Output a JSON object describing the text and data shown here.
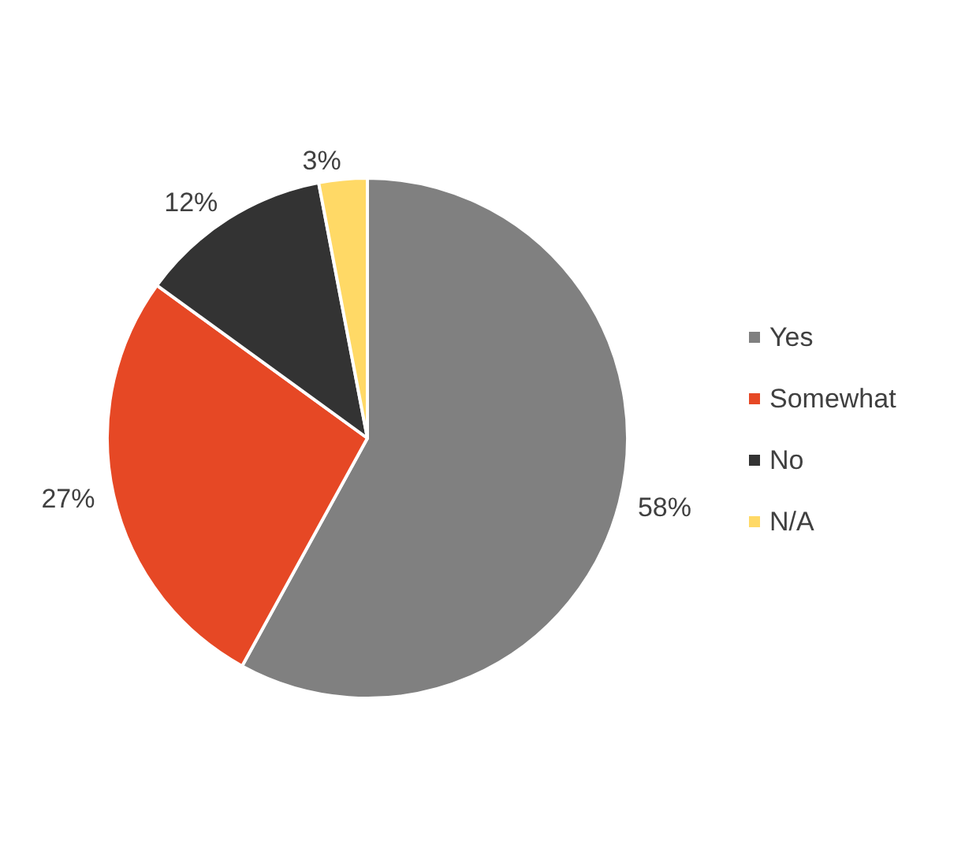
{
  "chart_data": {
    "type": "pie",
    "categories": [
      "Yes",
      "Somewhat",
      "No",
      "N/A"
    ],
    "values": [
      58,
      27,
      12,
      3
    ],
    "value_labels": [
      "58%",
      "27%",
      "12%",
      "3%"
    ],
    "colors": [
      "#808080",
      "#e64825",
      "#333333",
      "#ffd966"
    ],
    "legend": "right"
  }
}
